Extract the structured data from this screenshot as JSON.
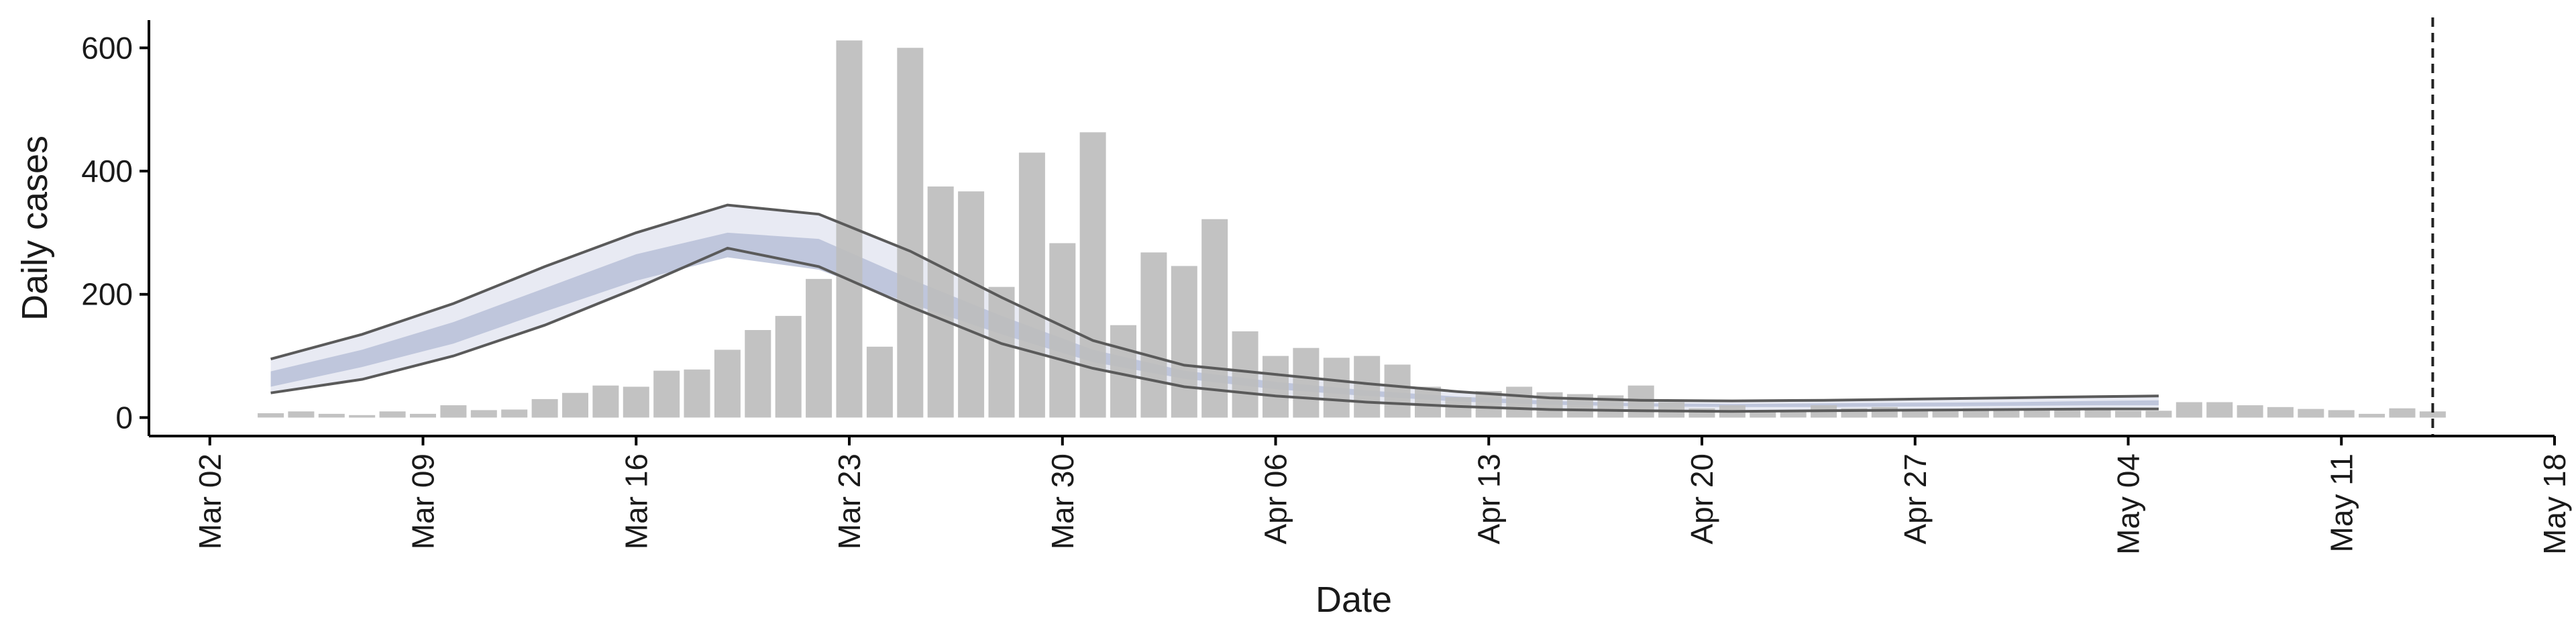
{
  "chart_data": {
    "type": "bar",
    "xlabel": "Date",
    "ylabel": "Daily cases",
    "x_range": [
      "2020-02-29",
      "2020-05-18"
    ],
    "ylim": [
      -30,
      645
    ],
    "x_ticks": [
      {
        "date": "2020-03-02",
        "label": "Mar 02"
      },
      {
        "date": "2020-03-09",
        "label": "Mar 09"
      },
      {
        "date": "2020-03-16",
        "label": "Mar 16"
      },
      {
        "date": "2020-03-23",
        "label": "Mar 23"
      },
      {
        "date": "2020-03-30",
        "label": "Mar 30"
      },
      {
        "date": "2020-04-06",
        "label": "Apr 06"
      },
      {
        "date": "2020-04-13",
        "label": "Apr 13"
      },
      {
        "date": "2020-04-20",
        "label": "Apr 20"
      },
      {
        "date": "2020-04-27",
        "label": "Apr 27"
      },
      {
        "date": "2020-05-04",
        "label": "May 04"
      },
      {
        "date": "2020-05-11",
        "label": "May 11"
      },
      {
        "date": "2020-05-18",
        "label": "May 18"
      }
    ],
    "y_ticks": [
      0,
      200,
      400,
      600
    ],
    "grid": false,
    "bars": {
      "start_date": "2020-03-04",
      "color": "#bdbdbd",
      "values": [
        7,
        10,
        6,
        4,
        10,
        6,
        20,
        12,
        13,
        30,
        40,
        52,
        50,
        76,
        78,
        110,
        142,
        165,
        225,
        612,
        115,
        600,
        375,
        367,
        212,
        430,
        283,
        463,
        150,
        268,
        246,
        322,
        140,
        100,
        113,
        97,
        100,
        86,
        50,
        33,
        43,
        50,
        41,
        38,
        36,
        52,
        25,
        15,
        20,
        10,
        12,
        20,
        15,
        17,
        14,
        13,
        15,
        15,
        12,
        12,
        14,
        11,
        11,
        25,
        25,
        20,
        17,
        14,
        12,
        6,
        15,
        10
      ]
    },
    "estimate": {
      "start_date": "2020-03-04",
      "end_date": "2020-05-05",
      "dates": [
        "2020-03-04",
        "2020-03-07",
        "2020-03-10",
        "2020-03-13",
        "2020-03-16",
        "2020-03-19",
        "2020-03-22",
        "2020-03-25",
        "2020-03-28",
        "2020-03-31",
        "2020-04-03",
        "2020-04-06",
        "2020-04-09",
        "2020-04-12",
        "2020-04-15",
        "2020-04-18",
        "2020-04-21",
        "2020-04-24",
        "2020-04-27",
        "2020-04-30",
        "2020-05-03",
        "2020-05-05"
      ],
      "upper": [
        95,
        135,
        185,
        245,
        300,
        345,
        330,
        270,
        195,
        125,
        85,
        70,
        55,
        42,
        32,
        28,
        27,
        28,
        30,
        32,
        34,
        35
      ],
      "upper_inner": [
        75,
        110,
        155,
        210,
        265,
        300,
        290,
        225,
        165,
        110,
        76,
        58,
        44,
        34,
        27,
        23,
        22,
        23,
        24,
        25,
        27,
        28
      ],
      "lower_inner": [
        50,
        82,
        120,
        172,
        222,
        260,
        240,
        185,
        135,
        90,
        63,
        46,
        35,
        26,
        21,
        18,
        17,
        17,
        18,
        19,
        20,
        20
      ],
      "lower": [
        40,
        62,
        100,
        150,
        210,
        275,
        245,
        180,
        120,
        80,
        50,
        35,
        25,
        18,
        13,
        11,
        10,
        11,
        12,
        13,
        14,
        14
      ],
      "outer_band_color": "#e8eaf3",
      "inner_band_color": "#b7bfd7",
      "line_color": "#5a5a5a"
    },
    "vline": {
      "date": "2020-05-14",
      "style": "dashed",
      "color": "#222222"
    }
  }
}
